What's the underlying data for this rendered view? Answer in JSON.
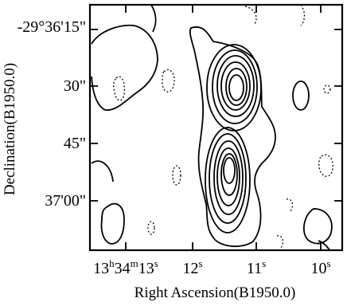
{
  "chart_data": {
    "type": "contour",
    "xlabel": "Right Ascension(B1950.0)",
    "ylabel": "Declination(B1950.0)",
    "x_ticks": [
      {
        "h": "13",
        "m": "34",
        "s": "13",
        "x_s": 13
      },
      {
        "s": "12",
        "x_s": 12
      },
      {
        "s": "11",
        "x_s": 11
      },
      {
        "s": "10",
        "x_s": 10
      }
    ],
    "y_ticks": [
      {
        "label": "-29°36'15\"",
        "dec_arcsec": 15
      },
      {
        "label": "30\"",
        "dec_arcsec": 30
      },
      {
        "label": "45\"",
        "dec_arcsec": 45
      },
      {
        "label": "37'00\"",
        "dec_arcsec": 60
      }
    ],
    "xlim_s": [
      13.3,
      9.5
    ],
    "ylim_arcsec": [
      8,
      72
    ],
    "peaks": [
      {
        "ra_s": 11.35,
        "dec_arcsec": 30.5,
        "levels": 7
      },
      {
        "ra_s": 11.55,
        "dec_arcsec": 49.5,
        "levels": 7
      }
    ]
  }
}
